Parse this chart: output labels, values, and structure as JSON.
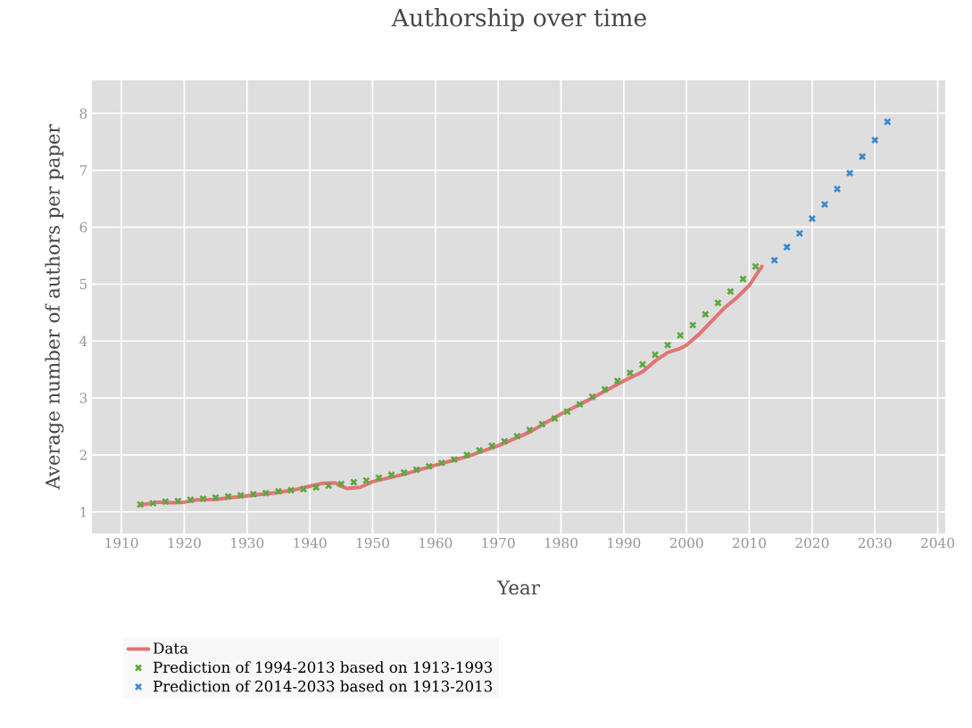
{
  "chart_data": {
    "type": "scatter",
    "title": "Authorship over time",
    "xlabel": "Year",
    "ylabel": "Average number of authors per paper",
    "xlim": [
      1905.3,
      2041.2
    ],
    "ylim": [
      0.62,
      8.58
    ],
    "xticks": [
      1910,
      1920,
      1930,
      1940,
      1950,
      1960,
      1970,
      1980,
      1990,
      2000,
      2010,
      2020,
      2030,
      2040
    ],
    "yticks": [
      1,
      2,
      3,
      4,
      5,
      6,
      7,
      8
    ],
    "grid": true,
    "legend": "bottom",
    "marker": "cross",
    "series": [
      {
        "name": "Data",
        "type": "line",
        "marker": "none",
        "line_style": "solid",
        "color": "#e37474",
        "x": [
          1913,
          1916,
          1918,
          1920,
          1922,
          1925,
          1930,
          1935,
          1938,
          1940,
          1942,
          1944,
          1945,
          1946,
          1948,
          1950,
          1955,
          1960,
          1965,
          1970,
          1975,
          1980,
          1985,
          1990,
          1993,
          1995,
          1997,
          1999,
          2000,
          2002,
          2004,
          2006,
          2008,
          2010,
          2012
        ],
        "values": [
          1.12,
          1.17,
          1.16,
          1.17,
          1.21,
          1.22,
          1.28,
          1.34,
          1.4,
          1.45,
          1.5,
          1.51,
          1.45,
          1.41,
          1.43,
          1.53,
          1.66,
          1.82,
          1.97,
          2.16,
          2.4,
          2.72,
          3.0,
          3.3,
          3.46,
          3.65,
          3.8,
          3.87,
          3.93,
          4.12,
          4.35,
          4.58,
          4.76,
          4.98,
          5.31
        ]
      },
      {
        "name": "Prediction of 1994-2013 based on 1913-1993",
        "color": "#5fa641",
        "x": [
          1913,
          1915,
          1917,
          1919,
          1921,
          1923,
          1925,
          1927,
          1929,
          1931,
          1933,
          1935,
          1937,
          1939,
          1941,
          1943,
          1945,
          1947,
          1949,
          1951,
          1953,
          1955,
          1957,
          1959,
          1961,
          1963,
          1965,
          1967,
          1969,
          1971,
          1973,
          1975,
          1977,
          1979,
          1981,
          1983,
          1985,
          1987,
          1989,
          1991,
          1993,
          1995,
          1997,
          1999,
          2001,
          2003,
          2005,
          2007,
          2009,
          2011
        ],
        "values": [
          1.13,
          1.15,
          1.18,
          1.19,
          1.21,
          1.23,
          1.25,
          1.27,
          1.29,
          1.31,
          1.33,
          1.36,
          1.38,
          1.4,
          1.43,
          1.46,
          1.49,
          1.52,
          1.55,
          1.6,
          1.65,
          1.69,
          1.74,
          1.8,
          1.86,
          1.92,
          2.0,
          2.08,
          2.16,
          2.24,
          2.33,
          2.44,
          2.54,
          2.64,
          2.76,
          2.89,
          3.02,
          3.15,
          3.3,
          3.44,
          3.59,
          3.76,
          3.93,
          4.1,
          4.28,
          4.47,
          4.67,
          4.87,
          5.09,
          5.31
        ]
      },
      {
        "name": "Prediction of 2014-2033 based on 1913-2013",
        "color": "#3a88d0",
        "x": [
          2014,
          2016,
          2018,
          2020,
          2022,
          2024,
          2026,
          2028,
          2030,
          2032
        ],
        "values": [
          5.42,
          5.65,
          5.89,
          6.15,
          6.4,
          6.67,
          6.95,
          7.24,
          7.53,
          7.85
        ]
      }
    ]
  }
}
